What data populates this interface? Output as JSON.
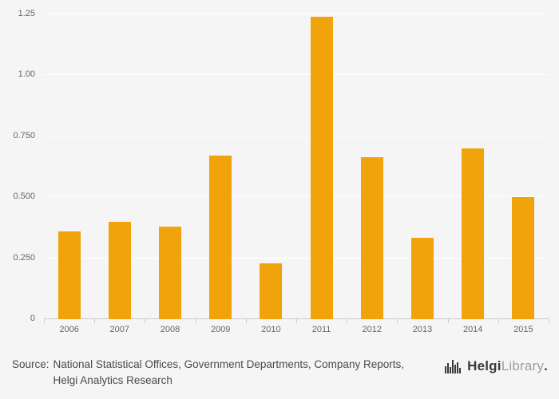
{
  "chart_data": {
    "type": "bar",
    "categories": [
      "2006",
      "2007",
      "2008",
      "2009",
      "2010",
      "2011",
      "2012",
      "2013",
      "2014",
      "2015"
    ],
    "values": [
      0.36,
      0.4,
      0.38,
      0.67,
      0.23,
      1.24,
      0.665,
      0.335,
      0.7,
      0.5
    ],
    "title": "",
    "xlabel": "",
    "ylabel": "",
    "ylim": [
      0,
      1.25
    ],
    "yticks": [
      0,
      0.25,
      0.5,
      0.75,
      1.0,
      1.25
    ],
    "ytick_labels": [
      "0",
      "0.250",
      "0.500",
      "0.750",
      "1.00",
      "1.25"
    ],
    "bar_color": "#f0a30a",
    "grid": true,
    "legend": "none",
    "background": "#f5f5f5"
  },
  "footer": {
    "source_label": "Source:",
    "source_text": "National Statistical Offices, Government Departments, Company Reports, Helgi Analytics Research",
    "logo": {
      "icon": "bar-chart-logo-icon",
      "name_primary": "Helgi",
      "name_secondary": "Library",
      "period": "."
    }
  }
}
